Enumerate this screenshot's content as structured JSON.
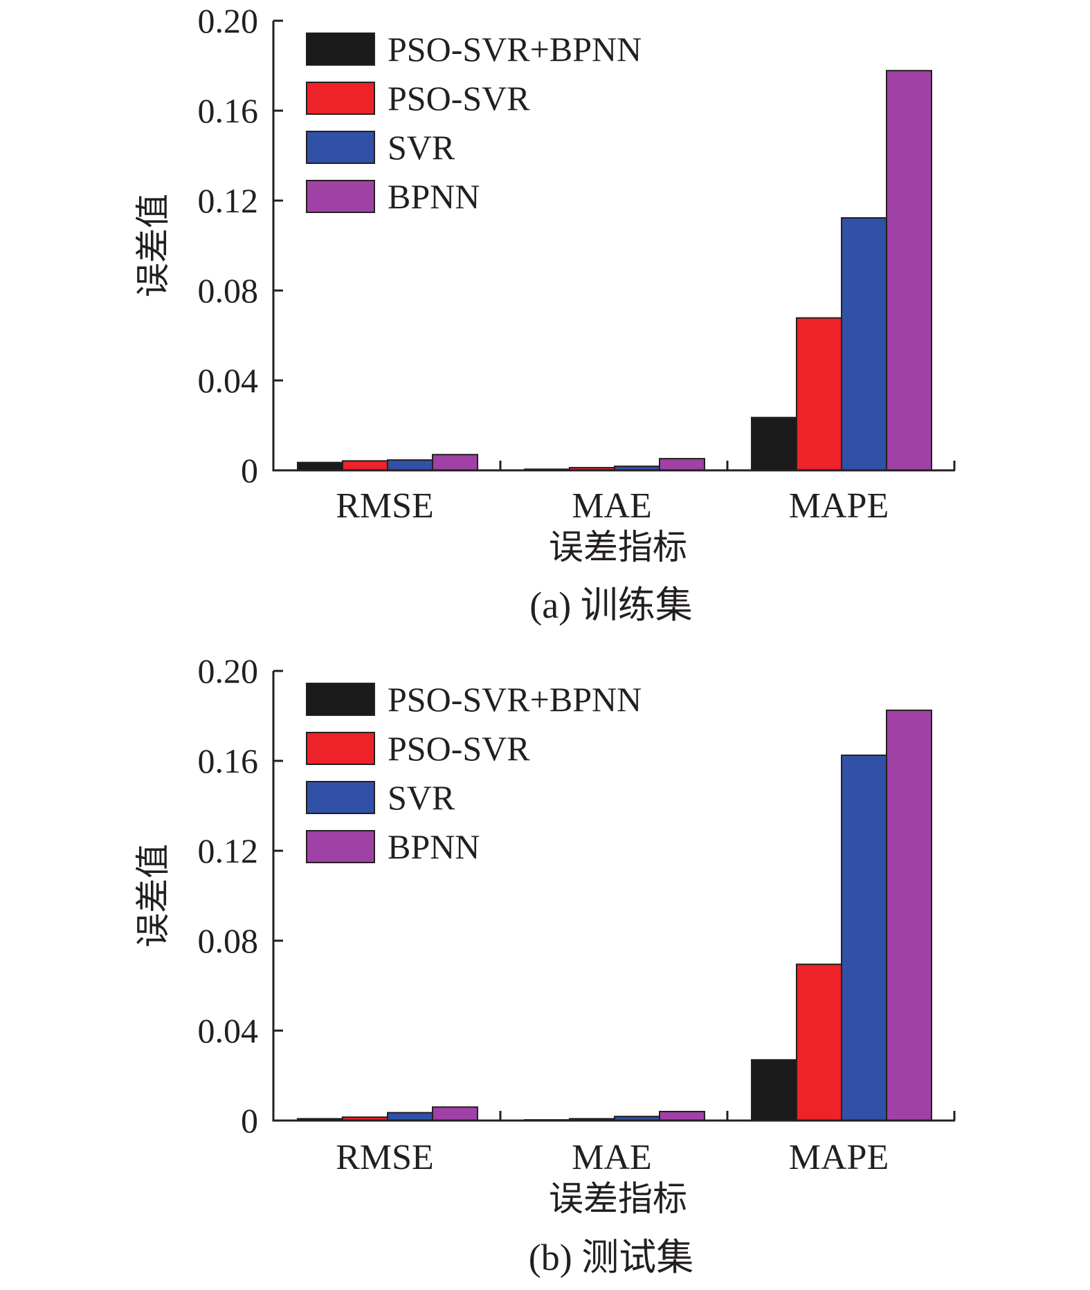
{
  "colors": {
    "PSO-SVR+BPNN": "#1b1a1a",
    "PSO-SVR": "#ee2229",
    "SVR": "#3151a6",
    "BPNN": "#a041a5"
  },
  "chart_data": [
    {
      "type": "bar",
      "caption": "(a) 训练集",
      "xlabel": "误差指标",
      "ylabel": "误差值",
      "categories": [
        "RMSE",
        "MAE",
        "MAPE"
      ],
      "ylim": [
        0,
        0.2
      ],
      "yticks": [
        0,
        0.04,
        0.08,
        0.12,
        0.16,
        0.2
      ],
      "ytick_labels": [
        "0",
        "0.04",
        "0.08",
        "0.12",
        "0.16",
        "0.20"
      ],
      "legend_position": "top-left",
      "series": [
        {
          "name": "PSO-SVR+BPNN",
          "values": [
            0.0035,
            0.0005,
            0.0235
          ]
        },
        {
          "name": "PSO-SVR",
          "values": [
            0.0042,
            0.0012,
            0.0678
          ]
        },
        {
          "name": "SVR",
          "values": [
            0.0046,
            0.0018,
            0.1123
          ]
        },
        {
          "name": "BPNN",
          "values": [
            0.007,
            0.0052,
            0.1778
          ]
        }
      ]
    },
    {
      "type": "bar",
      "caption": "(b) 测试集",
      "xlabel": "误差指标",
      "ylabel": "误差值",
      "categories": [
        "RMSE",
        "MAE",
        "MAPE"
      ],
      "ylim": [
        0,
        0.2
      ],
      "yticks": [
        0,
        0.04,
        0.08,
        0.12,
        0.16,
        0.2
      ],
      "ytick_labels": [
        "0",
        "0.04",
        "0.08",
        "0.12",
        "0.16",
        "0.20"
      ],
      "legend_position": "top-left",
      "series": [
        {
          "name": "PSO-SVR+BPNN",
          "values": [
            0.0008,
            0.0003,
            0.027
          ]
        },
        {
          "name": "PSO-SVR",
          "values": [
            0.0015,
            0.0008,
            0.0695
          ]
        },
        {
          "name": "SVR",
          "values": [
            0.0035,
            0.0018,
            0.1625
          ]
        },
        {
          "name": "BPNN",
          "values": [
            0.006,
            0.004,
            0.1825
          ]
        }
      ]
    }
  ]
}
